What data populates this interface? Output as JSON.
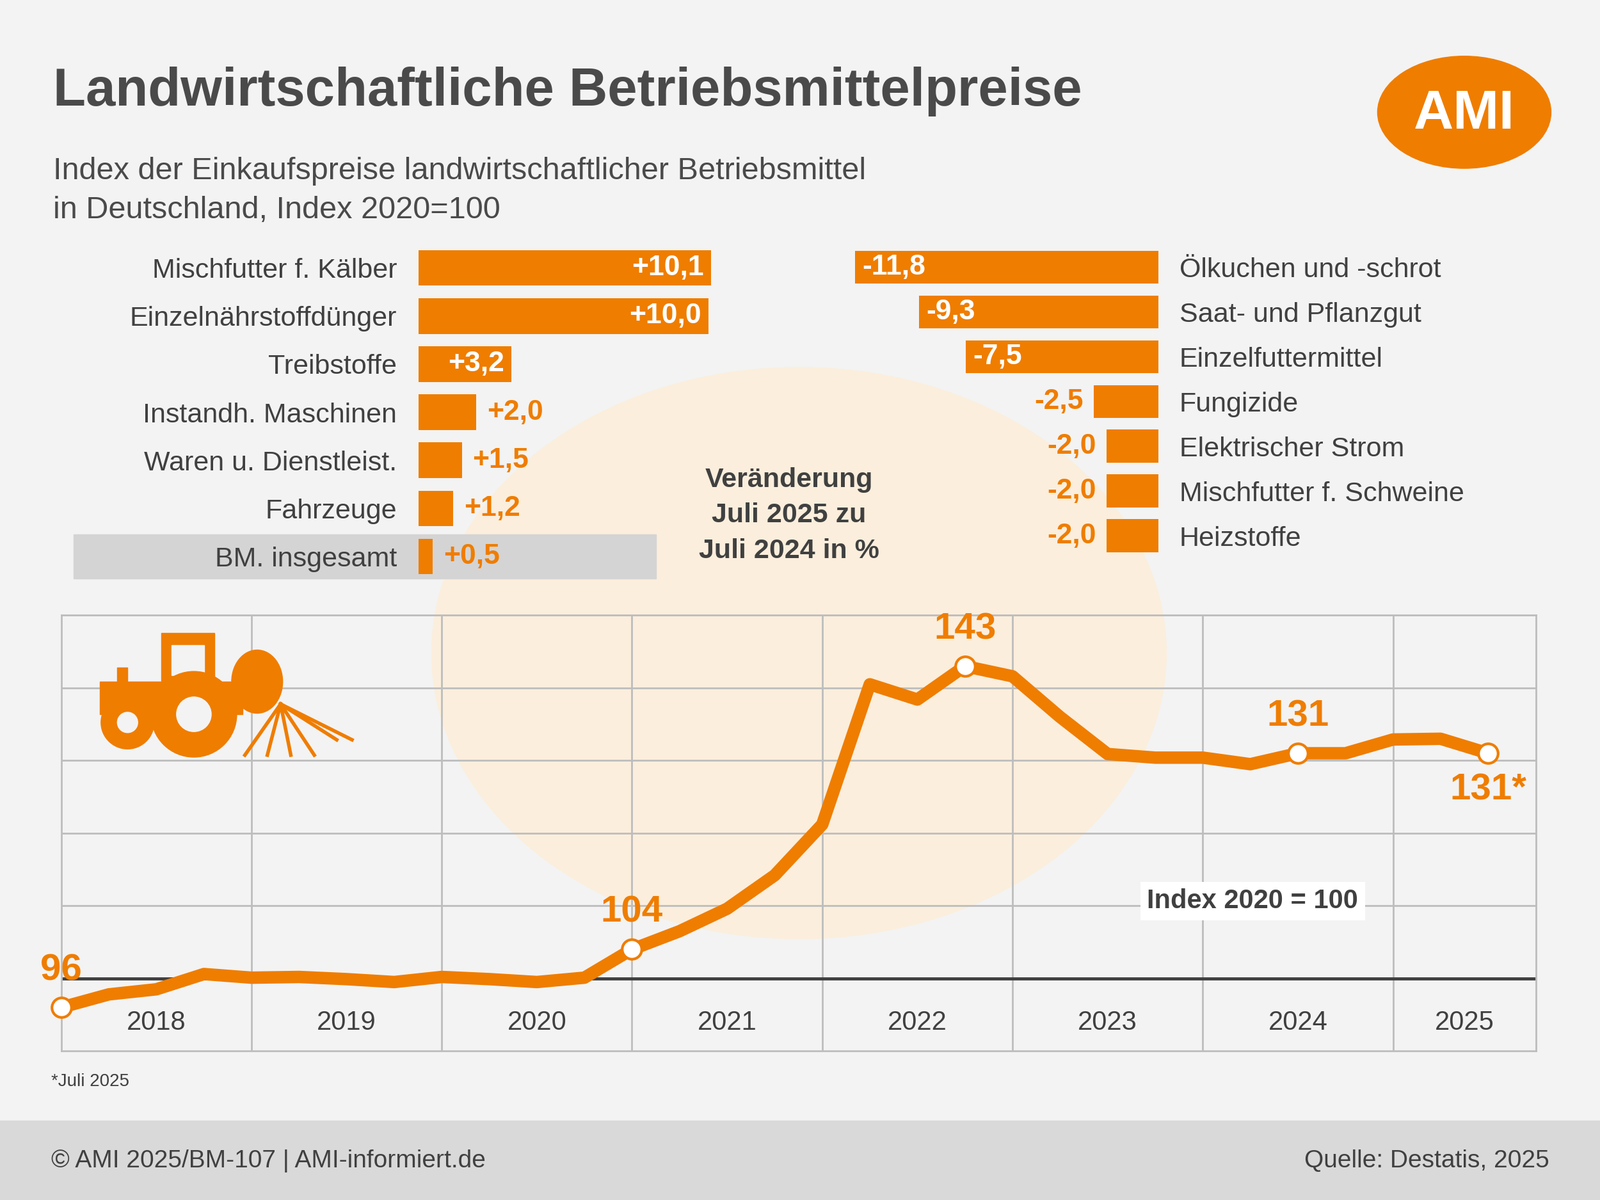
{
  "title": "Landwirtschaftliche Betriebsmittelpreise",
  "subtitle": "Index der Einkaufspreise landwirtschaftlicher Betriebsmittel\nin Deutschland, Index 2020=100",
  "logo": "AMI",
  "footnote": "*Juli 2025",
  "footer": {
    "copyright": "© AMI 2025/BM-107 | AMI-informiert.de",
    "source": "Quelle: Destatis, 2025"
  },
  "chart_data": [
    {
      "type": "bar",
      "orientation": "horizontal",
      "categories": [
        "Mischfutter f. Kälber",
        "Einzelnährstoffdünger",
        "Treibstoffe",
        "Instandh. Maschinen",
        "Waren u. Dienstleist.",
        "Fahrzeuge",
        "BM. insgesamt"
      ],
      "values": [
        10.1,
        10.0,
        3.2,
        2.0,
        1.5,
        1.2,
        0.5
      ],
      "value_labels": [
        "+10,1",
        "+10,0",
        "+3,2",
        "+2,0",
        "+1,5",
        "+1,2",
        "+0,5"
      ],
      "color": "#ef7d00",
      "data_labels": true,
      "xlim": [
        0,
        10.1
      ],
      "tick_labels": "y",
      "annotation": "Veränderung\nJuli 2025 zu\nJuli 2024 in %"
    },
    {
      "type": "bar",
      "orientation": "horizontal",
      "categories": [
        "Ölkuchen und -schrot",
        "Saat- und Pflanzgut",
        "Einzelfuttermittel",
        "Fungizide",
        "Elektrischer Strom",
        "Mischfutter f. Schweine",
        "Heizstoffe"
      ],
      "values": [
        -11.8,
        -9.3,
        -7.5,
        -2.5,
        -2.0,
        -2.0,
        -2.0
      ],
      "value_labels": [
        "-11,8",
        "-9,3",
        "-7,5",
        "-2,5",
        "-2,0",
        "-2,0",
        "-2,0"
      ],
      "color": "#ef7d00",
      "data_labels": true,
      "xlim": [
        -11.8,
        0
      ],
      "tick_labels": "y"
    },
    {
      "type": "line",
      "x": [
        2018.0,
        2018.25,
        2018.5,
        2018.75,
        2019.0,
        2019.25,
        2019.5,
        2019.75,
        2020.0,
        2020.25,
        2020.5,
        2020.75,
        2021.0,
        2021.25,
        2021.5,
        2021.75,
        2022.0,
        2022.25,
        2022.5,
        2022.75,
        2023.0,
        2023.25,
        2023.5,
        2023.75,
        2024.0,
        2024.25,
        2024.5,
        2024.75,
        2025.0,
        2025.25,
        2025.5
      ],
      "values": [
        96,
        97.8,
        98.5,
        100.6,
        100.1,
        100.2,
        99.9,
        99.5,
        100.2,
        99.9,
        99.5,
        100.1,
        104,
        106.5,
        109.6,
        114.2,
        121.2,
        140.5,
        138.4,
        143,
        141.6,
        136,
        130.9,
        130.4,
        130.4,
        129.5,
        131,
        131,
        132.9,
        133,
        131
      ],
      "value_labels": [
        "96",
        null,
        null,
        null,
        null,
        null,
        null,
        null,
        null,
        null,
        null,
        null,
        "104",
        null,
        null,
        null,
        null,
        null,
        null,
        "143",
        null,
        null,
        null,
        null,
        null,
        null,
        "131",
        null,
        null,
        null,
        "131*"
      ],
      "color": "#ef7d00",
      "marker": "o",
      "line_style": "solid",
      "xlim": [
        2018.0,
        2025.75
      ],
      "xticks": [
        {
          "value": 2018.5,
          "label": "2018"
        },
        {
          "value": 2019.5,
          "label": "2019"
        },
        {
          "value": 2020.5,
          "label": "2020"
        },
        {
          "value": 2021.5,
          "label": "2021"
        },
        {
          "value": 2022.5,
          "label": "2022"
        },
        {
          "value": 2023.5,
          "label": "2023"
        },
        {
          "value": 2024.5,
          "label": "2024"
        },
        {
          "value": 2025.375,
          "label": "2025"
        }
      ],
      "ylim": [
        90,
        150
      ],
      "yticks": [
        100,
        110,
        120,
        130,
        140,
        150
      ],
      "grid": true,
      "tick_labels": "x",
      "annotation": "Index 2020 = 100"
    }
  ]
}
